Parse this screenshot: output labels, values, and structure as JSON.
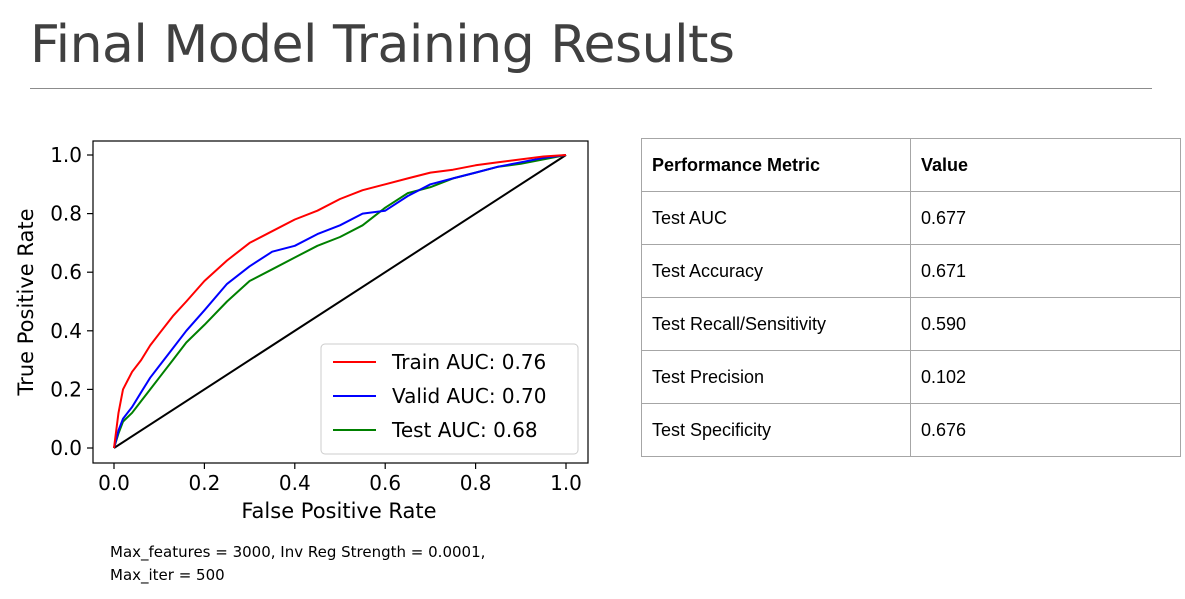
{
  "slide": {
    "title": "Final Model Training Results",
    "caption_lines": [
      "Max_features = 3000, Inv Reg Strength = 0.0001,",
      "Max_iter = 500"
    ]
  },
  "table": {
    "headers": [
      "Performance Metric",
      "Value"
    ],
    "rows": [
      [
        "Test AUC",
        "0.677"
      ],
      [
        "Test Accuracy",
        "0.671"
      ],
      [
        "Test Recall/Sensitivity",
        "0.590"
      ],
      [
        "Test Precision",
        "0.102"
      ],
      [
        "Test Specificity",
        "0.676"
      ]
    ]
  },
  "chart_data": {
    "type": "line",
    "title": "",
    "xlabel": "False Positive Rate",
    "ylabel": "True Positive Rate",
    "xlim": [
      0.0,
      1.0
    ],
    "ylim": [
      0.0,
      1.0
    ],
    "xticks": [
      "0.0",
      "0.2",
      "0.4",
      "0.6",
      "0.8",
      "1.0"
    ],
    "yticks": [
      "0.0",
      "0.2",
      "0.4",
      "0.6",
      "0.8",
      "1.0"
    ],
    "grid": false,
    "legend_position": "lower-right",
    "series": [
      {
        "name": "Train AUC: 0.76",
        "color": "#ff0000",
        "x": [
          0.0,
          0.01,
          0.02,
          0.04,
          0.06,
          0.08,
          0.1,
          0.13,
          0.16,
          0.2,
          0.25,
          0.3,
          0.35,
          0.4,
          0.45,
          0.5,
          0.55,
          0.6,
          0.65,
          0.7,
          0.75,
          0.8,
          0.85,
          0.9,
          0.95,
          1.0
        ],
        "y": [
          0.0,
          0.12,
          0.2,
          0.26,
          0.3,
          0.35,
          0.39,
          0.45,
          0.5,
          0.57,
          0.64,
          0.7,
          0.74,
          0.78,
          0.81,
          0.85,
          0.88,
          0.9,
          0.92,
          0.94,
          0.95,
          0.965,
          0.975,
          0.985,
          0.995,
          1.0
        ]
      },
      {
        "name": "Valid AUC: 0.70",
        "color": "#0000ff",
        "x": [
          0.0,
          0.01,
          0.02,
          0.04,
          0.06,
          0.08,
          0.1,
          0.13,
          0.16,
          0.2,
          0.25,
          0.3,
          0.35,
          0.4,
          0.45,
          0.5,
          0.55,
          0.6,
          0.65,
          0.7,
          0.75,
          0.8,
          0.85,
          0.9,
          0.95,
          1.0
        ],
        "y": [
          0.0,
          0.06,
          0.1,
          0.14,
          0.19,
          0.24,
          0.28,
          0.34,
          0.4,
          0.47,
          0.56,
          0.62,
          0.67,
          0.69,
          0.73,
          0.76,
          0.8,
          0.81,
          0.86,
          0.9,
          0.92,
          0.94,
          0.96,
          0.975,
          0.99,
          1.0
        ]
      },
      {
        "name": "Test AUC: 0.68",
        "color": "#008000",
        "x": [
          0.0,
          0.01,
          0.02,
          0.04,
          0.06,
          0.08,
          0.1,
          0.13,
          0.16,
          0.2,
          0.25,
          0.3,
          0.35,
          0.4,
          0.45,
          0.5,
          0.55,
          0.6,
          0.65,
          0.7,
          0.75,
          0.8,
          0.85,
          0.9,
          0.95,
          1.0
        ],
        "y": [
          0.0,
          0.05,
          0.09,
          0.12,
          0.16,
          0.2,
          0.24,
          0.3,
          0.36,
          0.42,
          0.5,
          0.57,
          0.61,
          0.65,
          0.69,
          0.72,
          0.76,
          0.82,
          0.87,
          0.89,
          0.92,
          0.94,
          0.96,
          0.97,
          0.985,
          1.0
        ]
      },
      {
        "name": "",
        "color": "#000000",
        "x": [
          0.0,
          1.0
        ],
        "y": [
          0.0,
          1.0
        ]
      }
    ]
  }
}
